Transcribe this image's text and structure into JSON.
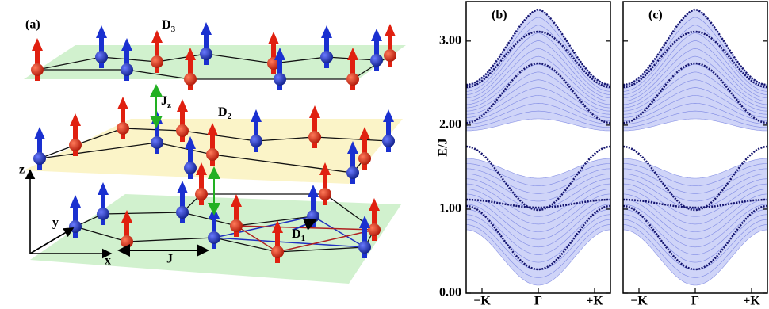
{
  "panel_a": {
    "label": "(a)",
    "D3": {
      "main": "D",
      "sub": "3"
    },
    "D2": {
      "main": "D",
      "sub": "2"
    },
    "D1": {
      "main": "D",
      "sub": "1"
    },
    "Jz": {
      "main": "J",
      "sub": "z"
    },
    "J": "J",
    "x": "x",
    "y": "y",
    "z": "z"
  },
  "panel_b": {
    "label": "(b)"
  },
  "panel_c": {
    "label": "(c)"
  },
  "axes": {
    "ylabel": "E/J",
    "ylim": [
      0,
      3.47
    ],
    "yticks": [
      {
        "value": 0,
        "label": "0.00"
      },
      {
        "value": 1,
        "label": "1.00"
      },
      {
        "value": 2,
        "label": "2.00"
      },
      {
        "value": 3,
        "label": "3.00"
      }
    ],
    "xticks": [
      "−K",
      "Γ",
      "+K"
    ]
  }
}
